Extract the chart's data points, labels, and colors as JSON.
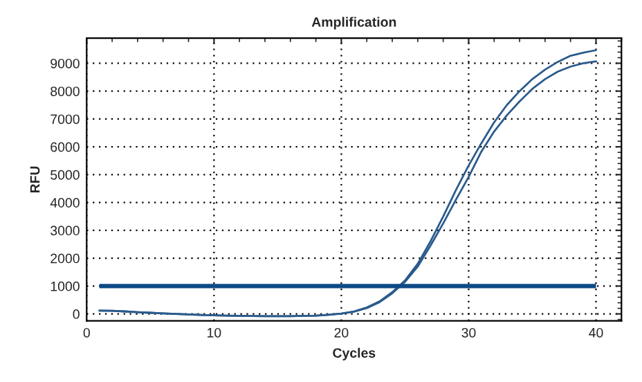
{
  "chart_data": {
    "type": "line",
    "title": "Amplification",
    "xlabel": "Cycles",
    "ylabel": "RFU",
    "x": [
      1,
      2,
      3,
      4,
      5,
      6,
      7,
      8,
      9,
      10,
      11,
      12,
      13,
      14,
      15,
      16,
      17,
      18,
      19,
      20,
      21,
      22,
      23,
      24,
      25,
      26,
      27,
      28,
      29,
      30,
      31,
      32,
      33,
      34,
      35,
      36,
      37,
      38,
      39,
      40
    ],
    "series": [
      {
        "color": "#2b5b8c",
        "values": [
          120,
          110,
          90,
          60,
          40,
          20,
          0,
          -20,
          -40,
          -50,
          -60,
          -70,
          -75,
          -80,
          -80,
          -80,
          -70,
          -60,
          -30,
          10,
          90,
          230,
          450,
          780,
          1200,
          1800,
          2600,
          3500,
          4450,
          5330,
          6130,
          6880,
          7500,
          8000,
          8430,
          8770,
          9050,
          9270,
          9380,
          9470
        ]
      },
      {
        "color": "#2b5b8c",
        "values": [
          120,
          110,
          90,
          60,
          40,
          20,
          0,
          -20,
          -40,
          -50,
          -60,
          -70,
          -75,
          -80,
          -80,
          -80,
          -70,
          -60,
          -30,
          10,
          80,
          210,
          420,
          740,
          1150,
          1700,
          2450,
          3250,
          4100,
          4920,
          5830,
          6550,
          7130,
          7630,
          8080,
          8430,
          8700,
          8880,
          9000,
          9070
        ]
      }
    ],
    "ref_lines": [
      {
        "axis": "y",
        "value": 1000,
        "color": "#0d4a86"
      }
    ],
    "xlim": [
      0,
      42
    ],
    "ylim": [
      -250,
      9900
    ],
    "xticks": [
      0,
      10,
      20,
      30,
      40
    ],
    "yticks": [
      0,
      1000,
      2000,
      3000,
      4000,
      5000,
      6000,
      7000,
      8000,
      9000
    ],
    "grid": true,
    "marker": "none",
    "line_style": "solid"
  }
}
